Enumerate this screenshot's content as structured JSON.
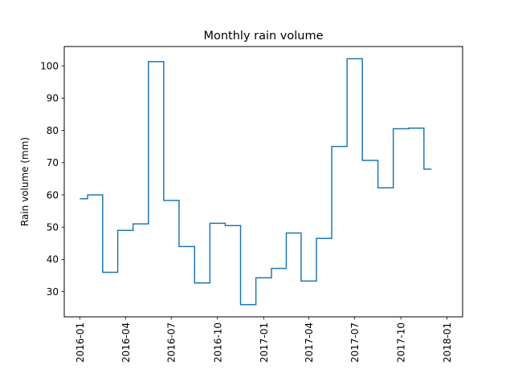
{
  "chart_data": {
    "type": "line",
    "drawstyle": "steps-mid",
    "title": "Monthly rain volume",
    "xlabel": "",
    "ylabel": "Rain volume (mm)",
    "line_color": "#1f77b4",
    "x": [
      "2016-01",
      "2016-02",
      "2016-03",
      "2016-04",
      "2016-05",
      "2016-06",
      "2016-07",
      "2016-08",
      "2016-09",
      "2016-10",
      "2016-11",
      "2016-12",
      "2017-01",
      "2017-02",
      "2017-03",
      "2017-04",
      "2017-05",
      "2017-06",
      "2017-07",
      "2017-08",
      "2017-09",
      "2017-10",
      "2017-11",
      "2017-12"
    ],
    "values": [
      58.8,
      60.0,
      36.0,
      49.0,
      51.0,
      101.3,
      58.3,
      44.0,
      32.7,
      51.2,
      50.5,
      26.0,
      34.3,
      37.2,
      48.2,
      33.3,
      46.5,
      75.0,
      102.2,
      70.7,
      62.2,
      80.5,
      80.7,
      68.0
    ],
    "x_ticks": [
      "2016-01",
      "2016-04",
      "2016-07",
      "2016-10",
      "2017-01",
      "2017-04",
      "2017-07",
      "2017-10",
      "2018-01"
    ],
    "y_ticks": [
      30,
      40,
      50,
      60,
      70,
      80,
      90,
      100
    ],
    "ylim": [
      22.2,
      106.0
    ],
    "xlim": [
      "2015-12-01",
      "2018-02-01"
    ],
    "grid": false
  }
}
